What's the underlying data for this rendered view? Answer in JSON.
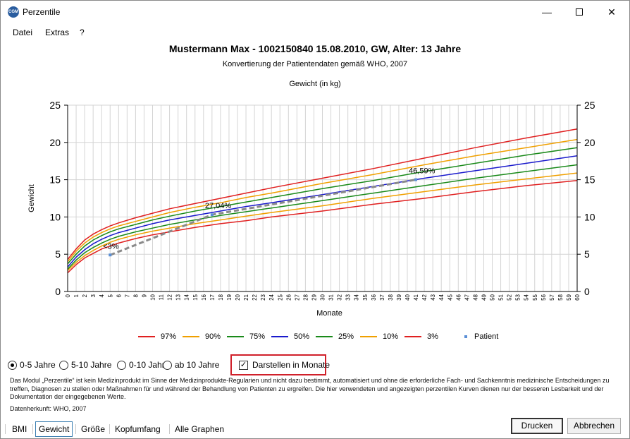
{
  "window": {
    "title": "Perzentile",
    "icon_name": "cgm-app-icon",
    "controls": [
      "minimize-icon",
      "maximize-icon",
      "close-icon"
    ]
  },
  "menu": {
    "items": [
      "Datei",
      "Extras",
      "?"
    ]
  },
  "chart_data": {
    "type": "line",
    "title": "Mustermann Max - 1002150840 15.08.2010, GW, Alter: 13 Jahre",
    "subtitle": "Konvertierung der Patientendaten gemäß WHO, 2007",
    "measure": "Gewicht (in kg)",
    "xlabel": "Monate",
    "ylabel": "Gewicht",
    "xlim": [
      0,
      60
    ],
    "ylim": [
      0,
      25
    ],
    "x_ticks": [
      0,
      1,
      2,
      3,
      4,
      5,
      6,
      7,
      8,
      9,
      10,
      11,
      12,
      13,
      14,
      15,
      16,
      17,
      18,
      19,
      20,
      21,
      22,
      23,
      24,
      25,
      26,
      27,
      28,
      29,
      30,
      31,
      32,
      33,
      34,
      35,
      36,
      37,
      38,
      39,
      40,
      41,
      42,
      43,
      44,
      45,
      46,
      47,
      48,
      49,
      50,
      51,
      52,
      53,
      54,
      55,
      56,
      57,
      58,
      59,
      60
    ],
    "y_ticks": [
      0,
      5,
      10,
      15,
      20,
      25
    ],
    "grid": true,
    "legend_position": "bottom",
    "x": [
      0,
      1,
      2,
      3,
      4,
      5,
      6,
      8,
      10,
      12,
      15,
      18,
      21,
      24,
      30,
      36,
      42,
      48,
      54,
      60
    ],
    "series": [
      {
        "name": "97%",
        "color": "#e02020",
        "values": [
          4.3,
          5.7,
          6.9,
          7.7,
          8.3,
          8.8,
          9.2,
          9.9,
          10.5,
          11.1,
          11.8,
          12.5,
          13.2,
          13.9,
          15.2,
          16.5,
          17.9,
          19.3,
          20.6,
          21.8
        ]
      },
      {
        "name": "90%",
        "color": "#f0a000",
        "values": [
          4.0,
          5.4,
          6.5,
          7.3,
          7.9,
          8.4,
          8.8,
          9.4,
          10.0,
          10.6,
          11.3,
          11.9,
          12.6,
          13.2,
          14.5,
          15.7,
          17.0,
          18.2,
          19.3,
          20.4
        ]
      },
      {
        "name": "75%",
        "color": "#1a8a1a",
        "values": [
          3.7,
          5.0,
          6.1,
          6.9,
          7.5,
          8.0,
          8.4,
          9.0,
          9.6,
          10.1,
          10.8,
          11.4,
          12.0,
          12.6,
          13.8,
          14.9,
          16.1,
          17.2,
          18.3,
          19.3
        ]
      },
      {
        "name": "50%",
        "color": "#1a1acc",
        "values": [
          3.3,
          4.6,
          5.6,
          6.4,
          7.0,
          7.5,
          7.9,
          8.5,
          9.1,
          9.6,
          10.2,
          10.8,
          11.4,
          11.9,
          13.0,
          14.1,
          15.2,
          16.2,
          17.2,
          18.2
        ]
      },
      {
        "name": "25%",
        "color": "#1a8a1a",
        "values": [
          3.0,
          4.2,
          5.2,
          5.9,
          6.5,
          7.0,
          7.4,
          8.0,
          8.5,
          9.0,
          9.6,
          10.2,
          10.7,
          11.2,
          12.2,
          13.2,
          14.2,
          15.2,
          16.1,
          17.0
        ]
      },
      {
        "name": "10%",
        "color": "#f0a000",
        "values": [
          2.8,
          3.9,
          4.8,
          5.5,
          6.1,
          6.6,
          7.0,
          7.6,
          8.1,
          8.5,
          9.1,
          9.6,
          10.1,
          10.6,
          11.5,
          12.5,
          13.4,
          14.3,
          15.1,
          15.9
        ]
      },
      {
        "name": "3%",
        "color": "#e02020",
        "values": [
          2.5,
          3.6,
          4.5,
          5.1,
          5.7,
          6.1,
          6.5,
          7.1,
          7.6,
          8.0,
          8.6,
          9.1,
          9.5,
          10.0,
          10.8,
          11.7,
          12.5,
          13.4,
          14.2,
          14.9
        ]
      }
    ],
    "patient": {
      "name": "Patient",
      "color": "#8a8a8a",
      "x": [
        5,
        17,
        41
      ],
      "y": [
        4.9,
        10.3,
        15.0
      ],
      "labels": [
        "<3%",
        "27,04%",
        "46,59%"
      ]
    }
  },
  "controls": {
    "radio_options": [
      {
        "label": "0-5 Jahre",
        "checked": true
      },
      {
        "label": "5-10 Jahre",
        "checked": false
      },
      {
        "label": "0-10 Jahre",
        "checked": false
      },
      {
        "label": "ab 10 Jahre",
        "checked": false
      }
    ],
    "checkbox_label": "Darstellen in Monate",
    "checkbox_checked": true,
    "checkbox_mark": "✓"
  },
  "disclaimer": "Das Modul „Perzentile“ ist kein Medizinprodukt im Sinne der Medizinprodukte-Regularien und nicht dazu bestimmt, automatisiert und ohne die erforderliche Fach- und Sachkenntnis medizinische Entscheidungen zu treffen, Diagnosen zu stellen oder Maßnahmen für und während der Behandlung von Patienten zu ergreifen. Die hier verwendeten und angezeigten perzentilen Kurven dienen nur der besseren Lesbarkeit und der Dokumentation der eingegebenen Werte.",
  "source": "Datenherkunft: WHO, 2007",
  "tabs": [
    {
      "label": "BMI",
      "active": false
    },
    {
      "label": "Gewicht",
      "active": true
    },
    {
      "label": "Größe",
      "active": false
    },
    {
      "label": "Kopfumfang",
      "active": false
    },
    {
      "label": "Alle Graphen",
      "active": false
    }
  ],
  "buttons": {
    "print": "Drucken",
    "cancel": "Abbrechen"
  }
}
